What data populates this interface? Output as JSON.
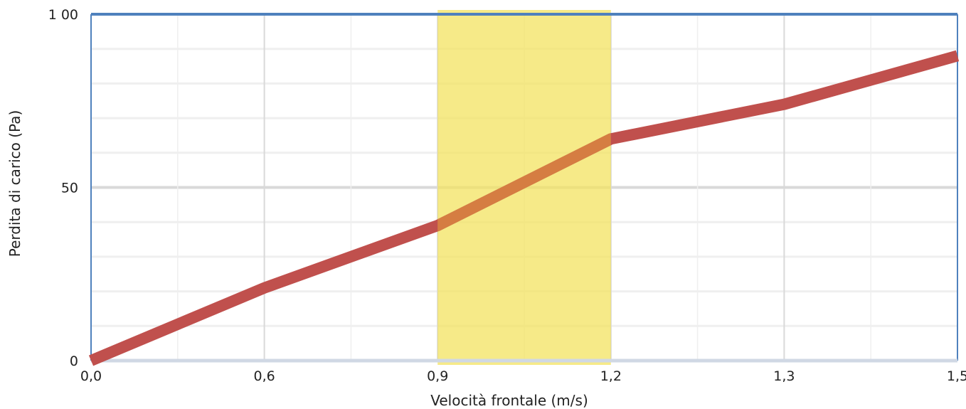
{
  "chart_data": {
    "type": "line",
    "title": "",
    "xlabel": "Velocità frontale (m/s)",
    "ylabel": "Perdita di carico (Pa)",
    "x_tick_labels": [
      "0,0",
      "0,6",
      "0,9",
      "1,2",
      "1,3",
      "1,5"
    ],
    "y_tick_labels": [
      "0",
      "50",
      "1 00"
    ],
    "y_ticks": [
      0,
      50,
      100
    ],
    "ylim": [
      0,
      100
    ],
    "grid": true,
    "highlight_band": {
      "from_label": "0,9",
      "to_label": "1,2",
      "color": "#f2e25a"
    },
    "series": [
      {
        "color": "#c0504d",
        "points": [
          {
            "x": "0,0",
            "y": 0
          },
          {
            "x": "0,6",
            "y": 21
          },
          {
            "x": "0,9",
            "y": 39
          },
          {
            "x": "1,2",
            "y": 64
          },
          {
            "x": "1,3",
            "y": 74
          },
          {
            "x": "1,5",
            "y": 88
          }
        ]
      }
    ],
    "colors": {
      "plot_border": "#4f81bd",
      "grid_major": "#d9d9d9",
      "grid_minor": "#efefef"
    }
  }
}
